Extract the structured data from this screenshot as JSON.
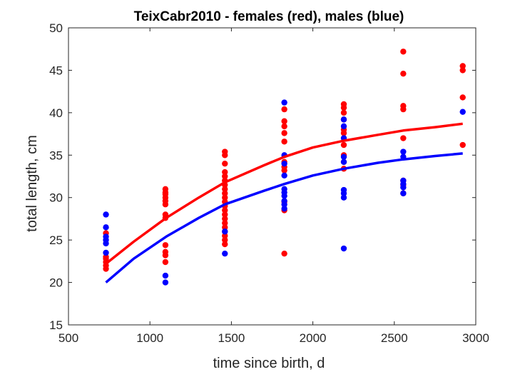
{
  "chart_data": {
    "type": "scatter",
    "title": "TeixCabr2010 - females (red), males (blue)",
    "xlabel": "time since birth, d",
    "ylabel": "total length, cm",
    "xlim": [
      500,
      3000
    ],
    "ylim": [
      15,
      50
    ],
    "xticks": [
      500,
      1000,
      1500,
      2000,
      2500,
      3000
    ],
    "yticks": [
      15,
      20,
      25,
      30,
      35,
      40,
      45,
      50
    ],
    "grid": false,
    "series": [
      {
        "color": "#ff0000",
        "points": [
          [
            730,
            21.6
          ],
          [
            730,
            22.0
          ],
          [
            730,
            22.4
          ],
          [
            730,
            22.8
          ],
          [
            730,
            23.0
          ],
          [
            730,
            25.8
          ],
          [
            1095,
            22.4
          ],
          [
            1095,
            23.2
          ],
          [
            1095,
            23.6
          ],
          [
            1095,
            24.4
          ],
          [
            1095,
            27.6
          ],
          [
            1095,
            28.0
          ],
          [
            1095,
            29.2
          ],
          [
            1095,
            29.6
          ],
          [
            1095,
            30.0
          ],
          [
            1095,
            30.4
          ],
          [
            1095,
            30.6
          ],
          [
            1095,
            31.0
          ],
          [
            1460,
            24.5
          ],
          [
            1460,
            25.0
          ],
          [
            1460,
            25.5
          ],
          [
            1460,
            26.0
          ],
          [
            1460,
            26.5
          ],
          [
            1460,
            27.0
          ],
          [
            1460,
            27.5
          ],
          [
            1460,
            28.0
          ],
          [
            1460,
            28.5
          ],
          [
            1460,
            29.0
          ],
          [
            1460,
            29.5
          ],
          [
            1460,
            30.0
          ],
          [
            1460,
            30.5
          ],
          [
            1460,
            31.0
          ],
          [
            1460,
            31.5
          ],
          [
            1460,
            32.0
          ],
          [
            1460,
            32.5
          ],
          [
            1460,
            33.0
          ],
          [
            1460,
            34.0
          ],
          [
            1460,
            35.0
          ],
          [
            1460,
            35.4
          ],
          [
            1825,
            23.4
          ],
          [
            1825,
            28.5
          ],
          [
            1825,
            29.5
          ],
          [
            1825,
            33.2
          ],
          [
            1825,
            33.6
          ],
          [
            1825,
            34.2
          ],
          [
            1825,
            36.6
          ],
          [
            1825,
            37.6
          ],
          [
            1825,
            38.4
          ],
          [
            1825,
            39.0
          ],
          [
            1825,
            40.4
          ],
          [
            2190,
            33.4
          ],
          [
            2190,
            34.2
          ],
          [
            2190,
            35.0
          ],
          [
            2190,
            36.2
          ],
          [
            2190,
            37.6
          ],
          [
            2190,
            38.0
          ],
          [
            2190,
            39.2
          ],
          [
            2190,
            40.0
          ],
          [
            2190,
            40.6
          ],
          [
            2190,
            41.0
          ],
          [
            2555,
            30.5
          ],
          [
            2555,
            31.5
          ],
          [
            2555,
            32.0
          ],
          [
            2555,
            37.0
          ],
          [
            2555,
            40.4
          ],
          [
            2555,
            40.8
          ],
          [
            2555,
            44.6
          ],
          [
            2555,
            47.2
          ],
          [
            2920,
            36.2
          ],
          [
            2920,
            41.8
          ],
          [
            2920,
            45.0
          ],
          [
            2920,
            45.5
          ]
        ],
        "curve": [
          [
            730,
            22.2
          ],
          [
            900,
            24.8
          ],
          [
            1100,
            27.6
          ],
          [
            1300,
            30.0
          ],
          [
            1460,
            31.8
          ],
          [
            1700,
            33.8
          ],
          [
            1825,
            34.8
          ],
          [
            2000,
            35.9
          ],
          [
            2190,
            36.7
          ],
          [
            2400,
            37.4
          ],
          [
            2555,
            37.9
          ],
          [
            2750,
            38.3
          ],
          [
            2920,
            38.7
          ]
        ]
      },
      {
        "color": "#0000ff",
        "points": [
          [
            730,
            23.5
          ],
          [
            730,
            24.6
          ],
          [
            730,
            25.0
          ],
          [
            730,
            25.4
          ],
          [
            730,
            26.5
          ],
          [
            730,
            28.0
          ],
          [
            1095,
            20.0
          ],
          [
            1095,
            20.8
          ],
          [
            1460,
            23.4
          ],
          [
            1460,
            26.0
          ],
          [
            1825,
            28.7
          ],
          [
            1825,
            29.2
          ],
          [
            1825,
            29.6
          ],
          [
            1825,
            30.2
          ],
          [
            1825,
            30.6
          ],
          [
            1825,
            31.0
          ],
          [
            1825,
            32.6
          ],
          [
            1825,
            34.0
          ],
          [
            1825,
            35.0
          ],
          [
            1825,
            41.2
          ],
          [
            2190,
            24.0
          ],
          [
            2190,
            30.0
          ],
          [
            2190,
            30.5
          ],
          [
            2190,
            30.9
          ],
          [
            2190,
            34.2
          ],
          [
            2190,
            34.8
          ],
          [
            2190,
            37.0
          ],
          [
            2190,
            38.4
          ],
          [
            2190,
            39.2
          ],
          [
            2555,
            30.5
          ],
          [
            2555,
            31.2
          ],
          [
            2555,
            31.6
          ],
          [
            2555,
            32.0
          ],
          [
            2555,
            34.8
          ],
          [
            2555,
            35.4
          ],
          [
            2920,
            40.1
          ]
        ],
        "curve": [
          [
            730,
            20.0
          ],
          [
            900,
            22.8
          ],
          [
            1100,
            25.4
          ],
          [
            1300,
            27.6
          ],
          [
            1460,
            29.2
          ],
          [
            1700,
            30.8
          ],
          [
            1825,
            31.6
          ],
          [
            2000,
            32.6
          ],
          [
            2190,
            33.4
          ],
          [
            2400,
            34.1
          ],
          [
            2555,
            34.5
          ],
          [
            2750,
            34.9
          ],
          [
            2920,
            35.2
          ]
        ]
      }
    ]
  }
}
